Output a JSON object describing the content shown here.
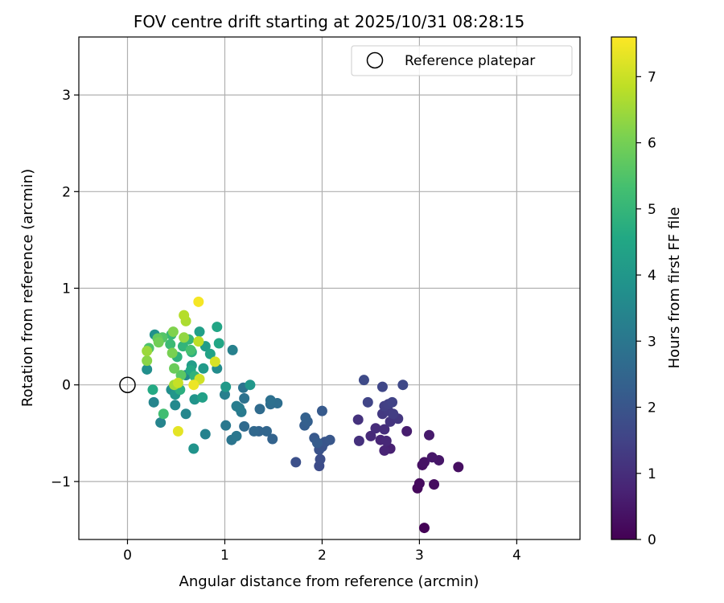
{
  "chart_data": {
    "type": "scatter",
    "title": "FOV centre drift starting at 2025/10/31 08:28:15",
    "xlabel": "Angular distance from reference (arcmin)",
    "ylabel": "Rotation from reference (arcmin)",
    "xlim": [
      -0.5,
      4.65
    ],
    "ylim": [
      -1.6,
      3.6
    ],
    "xticks": [
      0,
      1,
      2,
      3,
      4
    ],
    "xtick_labels": [
      "0",
      "1",
      "2",
      "3",
      "4"
    ],
    "yticks": [
      -1,
      0,
      1,
      2,
      3
    ],
    "ytick_labels": [
      "−1",
      "0",
      "1",
      "2",
      "3"
    ],
    "grid": true,
    "legend": {
      "placement": "top-right",
      "entries": [
        {
          "label": "Reference platepar",
          "marker": "open-circle"
        }
      ]
    },
    "reference_point": {
      "x": 0,
      "y": 0
    },
    "colorbar": {
      "label": "Hours from first FF file",
      "min": 0,
      "max": 7.6,
      "ticks": [
        0,
        1,
        2,
        3,
        4,
        5,
        6,
        7
      ],
      "tick_labels": [
        "0",
        "1",
        "2",
        "3",
        "4",
        "5",
        "6",
        "7"
      ],
      "colormap": "viridis"
    },
    "points": [
      {
        "x": 3.05,
        "y": -1.48,
        "c": 0.05
      },
      {
        "x": 2.98,
        "y": -1.07,
        "c": 0.15
      },
      {
        "x": 3.0,
        "y": -1.02,
        "c": 0.2
      },
      {
        "x": 3.15,
        "y": -1.03,
        "c": 0.25
      },
      {
        "x": 3.4,
        "y": -0.85,
        "c": 0.3
      },
      {
        "x": 3.03,
        "y": -0.83,
        "c": 0.35
      },
      {
        "x": 3.05,
        "y": -0.8,
        "c": 0.4
      },
      {
        "x": 3.2,
        "y": -0.78,
        "c": 0.45
      },
      {
        "x": 3.13,
        "y": -0.75,
        "c": 0.5
      },
      {
        "x": 3.1,
        "y": -0.52,
        "c": 0.55
      },
      {
        "x": 2.87,
        "y": -0.48,
        "c": 0.6
      },
      {
        "x": 2.7,
        "y": -0.66,
        "c": 0.7
      },
      {
        "x": 2.64,
        "y": -0.68,
        "c": 0.75
      },
      {
        "x": 2.6,
        "y": -0.57,
        "c": 0.8
      },
      {
        "x": 2.66,
        "y": -0.58,
        "c": 0.85
      },
      {
        "x": 2.5,
        "y": -0.53,
        "c": 0.9
      },
      {
        "x": 2.55,
        "y": -0.45,
        "c": 0.95
      },
      {
        "x": 2.64,
        "y": -0.46,
        "c": 1.0
      },
      {
        "x": 2.38,
        "y": -0.58,
        "c": 1.05
      },
      {
        "x": 2.37,
        "y": -0.36,
        "c": 1.1
      },
      {
        "x": 2.7,
        "y": -0.38,
        "c": 1.15
      },
      {
        "x": 2.78,
        "y": -0.35,
        "c": 1.2
      },
      {
        "x": 2.62,
        "y": -0.3,
        "c": 1.25
      },
      {
        "x": 2.68,
        "y": -0.27,
        "c": 1.3
      },
      {
        "x": 2.73,
        "y": -0.3,
        "c": 1.35
      },
      {
        "x": 2.64,
        "y": -0.22,
        "c": 1.4
      },
      {
        "x": 2.68,
        "y": -0.2,
        "c": 1.45
      },
      {
        "x": 2.72,
        "y": -0.18,
        "c": 1.5
      },
      {
        "x": 2.47,
        "y": -0.18,
        "c": 1.55
      },
      {
        "x": 2.62,
        "y": -0.02,
        "c": 1.6
      },
      {
        "x": 2.83,
        "y": 0.0,
        "c": 1.65
      },
      {
        "x": 2.43,
        "y": 0.05,
        "c": 1.7
      },
      {
        "x": 1.97,
        "y": -0.84,
        "c": 1.75
      },
      {
        "x": 1.98,
        "y": -0.77,
        "c": 1.8
      },
      {
        "x": 1.73,
        "y": -0.8,
        "c": 1.85
      },
      {
        "x": 1.97,
        "y": -0.67,
        "c": 1.9
      },
      {
        "x": 2.0,
        "y": -0.64,
        "c": 1.95
      },
      {
        "x": 2.03,
        "y": -0.59,
        "c": 2.0
      },
      {
        "x": 2.08,
        "y": -0.57,
        "c": 2.05
      },
      {
        "x": 1.92,
        "y": -0.55,
        "c": 2.1
      },
      {
        "x": 2.0,
        "y": -0.27,
        "c": 2.15
      },
      {
        "x": 1.95,
        "y": -0.6,
        "c": 2.2
      },
      {
        "x": 1.82,
        "y": -0.42,
        "c": 2.25
      },
      {
        "x": 1.85,
        "y": -0.38,
        "c": 2.3
      },
      {
        "x": 1.83,
        "y": -0.34,
        "c": 2.35
      },
      {
        "x": 1.49,
        "y": -0.56,
        "c": 2.4
      },
      {
        "x": 1.35,
        "y": -0.48,
        "c": 2.45
      },
      {
        "x": 1.43,
        "y": -0.48,
        "c": 2.5
      },
      {
        "x": 1.3,
        "y": -0.48,
        "c": 2.55
      },
      {
        "x": 1.2,
        "y": -0.43,
        "c": 2.6
      },
      {
        "x": 1.36,
        "y": -0.25,
        "c": 2.65
      },
      {
        "x": 1.47,
        "y": -0.2,
        "c": 2.7
      },
      {
        "x": 1.54,
        "y": -0.19,
        "c": 2.75
      },
      {
        "x": 1.47,
        "y": -0.16,
        "c": 2.8
      },
      {
        "x": 1.2,
        "y": -0.14,
        "c": 2.85
      },
      {
        "x": 1.19,
        "y": -0.03,
        "c": 2.9
      },
      {
        "x": 1.07,
        "y": -0.57,
        "c": 2.95
      },
      {
        "x": 1.12,
        "y": -0.53,
        "c": 3.0
      },
      {
        "x": 1.01,
        "y": -0.42,
        "c": 3.05
      },
      {
        "x": 1.17,
        "y": -0.28,
        "c": 3.1
      },
      {
        "x": 1.15,
        "y": -0.24,
        "c": 3.15
      },
      {
        "x": 1.12,
        "y": -0.22,
        "c": 3.2
      },
      {
        "x": 1.0,
        "y": -0.1,
        "c": 3.25
      },
      {
        "x": 1.08,
        "y": 0.36,
        "c": 3.3
      },
      {
        "x": 0.8,
        "y": -0.51,
        "c": 3.35
      },
      {
        "x": 0.34,
        "y": -0.39,
        "c": 3.4
      },
      {
        "x": 0.27,
        "y": -0.18,
        "c": 3.45
      },
      {
        "x": 0.6,
        "y": -0.3,
        "c": 3.5
      },
      {
        "x": 0.49,
        "y": -0.21,
        "c": 3.55
      },
      {
        "x": 0.6,
        "y": 0.1,
        "c": 3.6
      },
      {
        "x": 0.92,
        "y": 0.17,
        "c": 3.65
      },
      {
        "x": 0.45,
        "y": -0.05,
        "c": 3.7
      },
      {
        "x": 0.2,
        "y": 0.16,
        "c": 3.75
      },
      {
        "x": 0.28,
        "y": 0.52,
        "c": 3.8
      },
      {
        "x": 0.68,
        "y": -0.66,
        "c": 3.85
      },
      {
        "x": 0.69,
        "y": -0.15,
        "c": 3.9
      },
      {
        "x": 0.49,
        "y": -0.1,
        "c": 3.95
      },
      {
        "x": 1.26,
        "y": 0.0,
        "c": 4.0
      },
      {
        "x": 1.01,
        "y": -0.02,
        "c": 4.05
      },
      {
        "x": 0.78,
        "y": 0.17,
        "c": 4.1
      },
      {
        "x": 0.8,
        "y": 0.4,
        "c": 4.15
      },
      {
        "x": 0.66,
        "y": 0.2,
        "c": 4.2
      },
      {
        "x": 0.74,
        "y": 0.55,
        "c": 4.25
      },
      {
        "x": 0.77,
        "y": -0.13,
        "c": 4.3
      },
      {
        "x": 0.85,
        "y": 0.32,
        "c": 4.35
      },
      {
        "x": 0.92,
        "y": 0.6,
        "c": 4.45
      },
      {
        "x": 0.94,
        "y": 0.43,
        "c": 4.5
      },
      {
        "x": 0.65,
        "y": 0.15,
        "c": 4.55
      },
      {
        "x": 0.26,
        "y": -0.05,
        "c": 4.6
      },
      {
        "x": 0.54,
        "y": -0.05,
        "c": 4.75
      },
      {
        "x": 0.66,
        "y": 0.34,
        "c": 4.8
      },
      {
        "x": 0.51,
        "y": 0.29,
        "c": 4.85
      },
      {
        "x": 0.69,
        "y": 0.09,
        "c": 4.9
      },
      {
        "x": 0.57,
        "y": 0.4,
        "c": 4.95
      },
      {
        "x": 0.63,
        "y": 0.47,
        "c": 5.0
      },
      {
        "x": 0.45,
        "y": 0.52,
        "c": 5.05
      },
      {
        "x": 0.44,
        "y": 0.42,
        "c": 5.15
      },
      {
        "x": 0.37,
        "y": -0.3,
        "c": 5.25
      },
      {
        "x": 0.65,
        "y": 0.36,
        "c": 5.35
      },
      {
        "x": 0.22,
        "y": 0.38,
        "c": 5.45
      },
      {
        "x": 0.36,
        "y": 0.49,
        "c": 5.55
      },
      {
        "x": 0.55,
        "y": 0.1,
        "c": 5.65
      },
      {
        "x": 0.31,
        "y": 0.48,
        "c": 5.75
      },
      {
        "x": 0.48,
        "y": 0.17,
        "c": 5.85
      },
      {
        "x": 0.32,
        "y": 0.44,
        "c": 5.95
      },
      {
        "x": 0.46,
        "y": 0.33,
        "c": 6.05
      },
      {
        "x": 0.47,
        "y": 0.55,
        "c": 6.15
      },
      {
        "x": 0.2,
        "y": 0.25,
        "c": 6.25
      },
      {
        "x": 0.58,
        "y": 0.49,
        "c": 6.35
      },
      {
        "x": 0.2,
        "y": 0.35,
        "c": 6.45
      },
      {
        "x": 0.48,
        "y": 0.0,
        "c": 6.55
      },
      {
        "x": 0.6,
        "y": 0.66,
        "c": 6.65
      },
      {
        "x": 0.58,
        "y": 0.72,
        "c": 6.75
      },
      {
        "x": 0.73,
        "y": 0.45,
        "c": 6.85
      },
      {
        "x": 0.52,
        "y": 0.02,
        "c": 6.95
      },
      {
        "x": 0.74,
        "y": 0.06,
        "c": 7.05
      },
      {
        "x": 0.9,
        "y": 0.24,
        "c": 7.15
      },
      {
        "x": 0.52,
        "y": -0.48,
        "c": 7.3
      },
      {
        "x": 0.68,
        "y": 0.0,
        "c": 7.4
      },
      {
        "x": 0.73,
        "y": 0.86,
        "c": 7.5
      }
    ]
  }
}
